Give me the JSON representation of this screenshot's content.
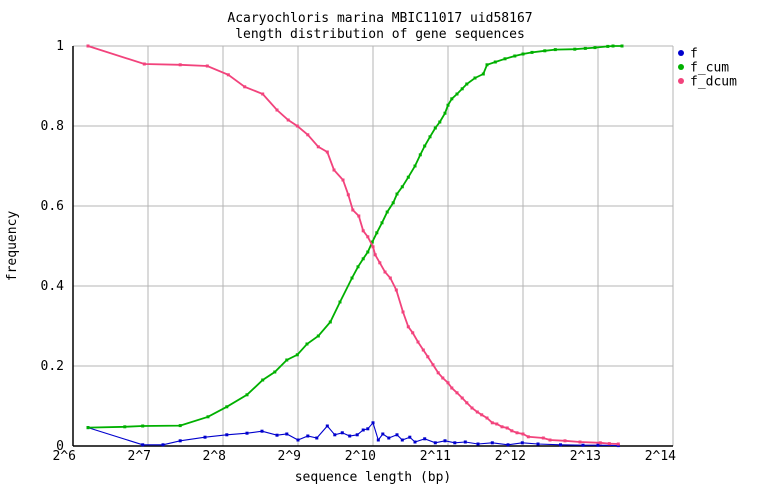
{
  "chart_data": {
    "type": "line",
    "title": "Acaryochloris marina MBIC11017 uid58167",
    "subtitle": "length distribution of gene sequences",
    "xlabel": "sequence length (bp)",
    "ylabel": "frequency",
    "x_scale": "log2",
    "xlim_log2": [
      6,
      14
    ],
    "ylim": [
      0,
      1
    ],
    "grid": true,
    "legend_position": "outside-top-right",
    "colors": {
      "f": "#0000cd",
      "f_cum": "#00b000",
      "f_dcum": "#f2437c",
      "grid": "#b4b4b4",
      "border": "#000000",
      "background": "#ffffff"
    },
    "x_ticks": [
      {
        "log2": 6,
        "label": "2^6"
      },
      {
        "log2": 7,
        "label": "2^7"
      },
      {
        "log2": 8,
        "label": "2^8"
      },
      {
        "log2": 9,
        "label": "2^9"
      },
      {
        "log2": 10,
        "label": "2^10"
      },
      {
        "log2": 11,
        "label": "2^11"
      },
      {
        "log2": 12,
        "label": "2^12"
      },
      {
        "log2": 13,
        "label": "2^13"
      },
      {
        "log2": 14,
        "label": "2^14"
      }
    ],
    "y_ticks": [
      {
        "v": 0,
        "label": "0"
      },
      {
        "v": 0.2,
        "label": "0.2"
      },
      {
        "v": 0.4,
        "label": "0.4"
      },
      {
        "v": 0.6,
        "label": "0.6"
      },
      {
        "v": 0.8,
        "label": "0.8"
      },
      {
        "v": 1,
        "label": "1"
      }
    ],
    "series": [
      {
        "name": "f",
        "color": "#0000cd",
        "line_width": 1.1,
        "marker_size": 3,
        "points": [
          [
            6.2,
            0.046
          ],
          [
            6.93,
            0.003
          ],
          [
            7.2,
            0.003
          ],
          [
            7.43,
            0.013
          ],
          [
            7.76,
            0.022
          ],
          [
            8.05,
            0.028
          ],
          [
            8.32,
            0.032
          ],
          [
            8.52,
            0.037
          ],
          [
            8.72,
            0.027
          ],
          [
            8.85,
            0.03
          ],
          [
            9.0,
            0.015
          ],
          [
            9.13,
            0.025
          ],
          [
            9.25,
            0.02
          ],
          [
            9.39,
            0.05
          ],
          [
            9.49,
            0.028
          ],
          [
            9.59,
            0.033
          ],
          [
            9.69,
            0.025
          ],
          [
            9.79,
            0.028
          ],
          [
            9.87,
            0.04
          ],
          [
            9.93,
            0.043
          ],
          [
            10.0,
            0.058
          ],
          [
            10.07,
            0.015
          ],
          [
            10.13,
            0.03
          ],
          [
            10.21,
            0.02
          ],
          [
            10.32,
            0.028
          ],
          [
            10.39,
            0.015
          ],
          [
            10.49,
            0.022
          ],
          [
            10.56,
            0.01
          ],
          [
            10.69,
            0.018
          ],
          [
            10.83,
            0.008
          ],
          [
            10.96,
            0.013
          ],
          [
            11.09,
            0.008
          ],
          [
            11.23,
            0.01
          ],
          [
            11.4,
            0.005
          ],
          [
            11.59,
            0.008
          ],
          [
            11.8,
            0.003
          ],
          [
            11.99,
            0.008
          ],
          [
            12.2,
            0.005
          ],
          [
            12.5,
            0.003
          ],
          [
            12.8,
            0.002
          ],
          [
            13.0,
            0.002
          ],
          [
            13.27,
            0.001
          ]
        ]
      },
      {
        "name": "f_cum",
        "color": "#00b000",
        "line_width": 1.8,
        "marker_size": 3,
        "points": [
          [
            6.2,
            0.046
          ],
          [
            6.69,
            0.048
          ],
          [
            6.93,
            0.05
          ],
          [
            7.43,
            0.051
          ],
          [
            7.8,
            0.073
          ],
          [
            8.05,
            0.098
          ],
          [
            8.32,
            0.128
          ],
          [
            8.53,
            0.165
          ],
          [
            8.69,
            0.185
          ],
          [
            8.85,
            0.215
          ],
          [
            8.99,
            0.228
          ],
          [
            9.12,
            0.255
          ],
          [
            9.27,
            0.275
          ],
          [
            9.43,
            0.31
          ],
          [
            9.56,
            0.36
          ],
          [
            9.72,
            0.42
          ],
          [
            9.8,
            0.448
          ],
          [
            9.87,
            0.468
          ],
          [
            9.93,
            0.485
          ],
          [
            9.99,
            0.51
          ],
          [
            10.05,
            0.533
          ],
          [
            10.12,
            0.558
          ],
          [
            10.19,
            0.585
          ],
          [
            10.27,
            0.608
          ],
          [
            10.32,
            0.63
          ],
          [
            10.39,
            0.648
          ],
          [
            10.47,
            0.672
          ],
          [
            10.56,
            0.7
          ],
          [
            10.63,
            0.728
          ],
          [
            10.69,
            0.75
          ],
          [
            10.76,
            0.773
          ],
          [
            10.83,
            0.795
          ],
          [
            10.89,
            0.81
          ],
          [
            10.96,
            0.832
          ],
          [
            11.0,
            0.852
          ],
          [
            11.05,
            0.868
          ],
          [
            11.12,
            0.88
          ],
          [
            11.19,
            0.893
          ],
          [
            11.25,
            0.905
          ],
          [
            11.36,
            0.92
          ],
          [
            11.47,
            0.93
          ],
          [
            11.52,
            0.953
          ],
          [
            11.63,
            0.96
          ],
          [
            11.76,
            0.968
          ],
          [
            11.89,
            0.975
          ],
          [
            12.0,
            0.98
          ],
          [
            12.12,
            0.984
          ],
          [
            12.29,
            0.988
          ],
          [
            12.43,
            0.991
          ],
          [
            12.69,
            0.992
          ],
          [
            12.83,
            0.994
          ],
          [
            12.96,
            0.996
          ],
          [
            13.13,
            0.999
          ],
          [
            13.2,
            1.0
          ],
          [
            13.32,
            1.0
          ]
        ]
      },
      {
        "name": "f_dcum",
        "color": "#f2437c",
        "line_width": 1.8,
        "marker_size": 3,
        "points": [
          [
            6.2,
            1.0
          ],
          [
            6.95,
            0.955
          ],
          [
            7.43,
            0.953
          ],
          [
            7.79,
            0.95
          ],
          [
            8.07,
            0.928
          ],
          [
            8.29,
            0.898
          ],
          [
            8.53,
            0.88
          ],
          [
            8.72,
            0.84
          ],
          [
            8.87,
            0.815
          ],
          [
            8.99,
            0.8
          ],
          [
            9.13,
            0.778
          ],
          [
            9.27,
            0.748
          ],
          [
            9.39,
            0.735
          ],
          [
            9.48,
            0.69
          ],
          [
            9.6,
            0.665
          ],
          [
            9.67,
            0.628
          ],
          [
            9.73,
            0.59
          ],
          [
            9.81,
            0.575
          ],
          [
            9.87,
            0.538
          ],
          [
            9.93,
            0.523
          ],
          [
            10.0,
            0.498
          ],
          [
            10.03,
            0.478
          ],
          [
            10.09,
            0.458
          ],
          [
            10.16,
            0.435
          ],
          [
            10.23,
            0.42
          ],
          [
            10.31,
            0.39
          ],
          [
            10.4,
            0.335
          ],
          [
            10.47,
            0.298
          ],
          [
            10.53,
            0.283
          ],
          [
            10.6,
            0.26
          ],
          [
            10.67,
            0.24
          ],
          [
            10.73,
            0.223
          ],
          [
            10.8,
            0.203
          ],
          [
            10.87,
            0.183
          ],
          [
            10.93,
            0.17
          ],
          [
            11.0,
            0.158
          ],
          [
            11.05,
            0.145
          ],
          [
            11.12,
            0.133
          ],
          [
            11.19,
            0.12
          ],
          [
            11.25,
            0.108
          ],
          [
            11.32,
            0.095
          ],
          [
            11.39,
            0.085
          ],
          [
            11.45,
            0.078
          ],
          [
            11.52,
            0.07
          ],
          [
            11.59,
            0.058
          ],
          [
            11.65,
            0.055
          ],
          [
            11.72,
            0.048
          ],
          [
            11.79,
            0.045
          ],
          [
            11.85,
            0.038
          ],
          [
            11.92,
            0.033
          ],
          [
            12.0,
            0.03
          ],
          [
            12.07,
            0.023
          ],
          [
            12.27,
            0.02
          ],
          [
            12.36,
            0.015
          ],
          [
            12.56,
            0.013
          ],
          [
            12.76,
            0.01
          ],
          [
            13.03,
            0.008
          ],
          [
            13.15,
            0.006
          ],
          [
            13.27,
            0.005
          ]
        ]
      }
    ]
  }
}
